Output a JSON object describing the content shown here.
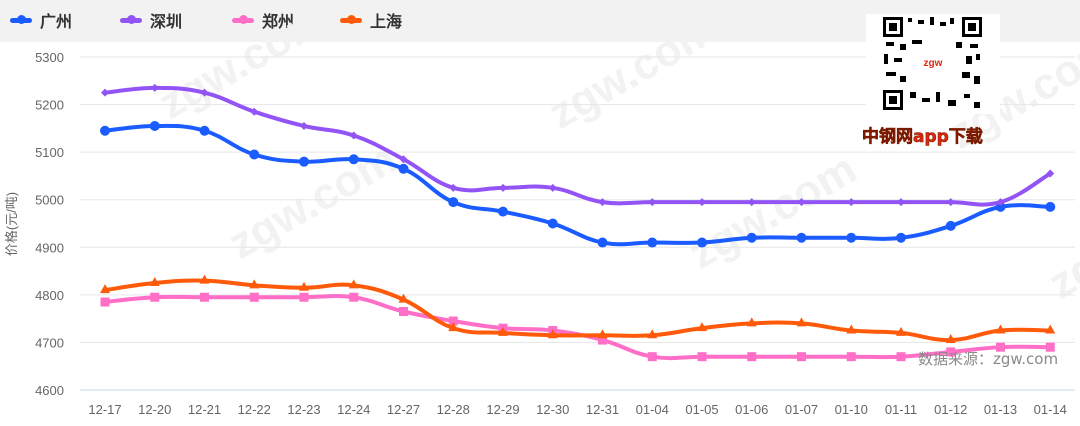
{
  "chart_data": {
    "type": "line",
    "ylabel": "价格(元/吨)",
    "ylim": [
      4600,
      5300
    ],
    "yticks": [
      4600,
      4700,
      4800,
      4900,
      5000,
      5100,
      5200,
      5300
    ],
    "grid": true,
    "legend_position": "top-left",
    "categories": [
      "12-17",
      "12-20",
      "12-21",
      "12-22",
      "12-23",
      "12-24",
      "12-27",
      "12-28",
      "12-29",
      "12-30",
      "12-31",
      "01-04",
      "01-05",
      "01-06",
      "01-07",
      "01-10",
      "01-11",
      "01-12",
      "01-13",
      "01-14"
    ],
    "series": [
      {
        "name": "广州",
        "color": "#1a5cff",
        "marker": "circle",
        "values": [
          5145,
          5155,
          5145,
          5095,
          5080,
          5085,
          5065,
          4995,
          4975,
          4950,
          4910,
          4910,
          4910,
          4920,
          4920,
          4920,
          4920,
          4945,
          4985,
          4985
        ]
      },
      {
        "name": "深圳",
        "color": "#9254f5",
        "marker": "diamond",
        "values": [
          5225,
          5235,
          5225,
          5185,
          5155,
          5135,
          5085,
          5025,
          5025,
          5025,
          4995,
          4995,
          4995,
          4995,
          4995,
          4995,
          4995,
          4995,
          4995,
          5055
        ]
      },
      {
        "name": "郑州",
        "color": "#ff6ec7",
        "marker": "square",
        "values": [
          4785,
          4795,
          4795,
          4795,
          4795,
          4795,
          4765,
          4745,
          4730,
          4725,
          4705,
          4670,
          4670,
          4670,
          4670,
          4670,
          4670,
          4680,
          4690,
          4690
        ]
      },
      {
        "name": "上海",
        "color": "#ff5a0a",
        "marker": "triangle",
        "values": [
          4810,
          4825,
          4830,
          4820,
          4815,
          4820,
          4790,
          4730,
          4720,
          4715,
          4715,
          4715,
          4730,
          4740,
          4740,
          4725,
          4720,
          4705,
          4725,
          4725
        ]
      }
    ]
  },
  "qr": {
    "label": "中钢网app下载"
  },
  "watermark": {
    "text": "zgw.com"
  },
  "source": "数据来源：zgw.com"
}
